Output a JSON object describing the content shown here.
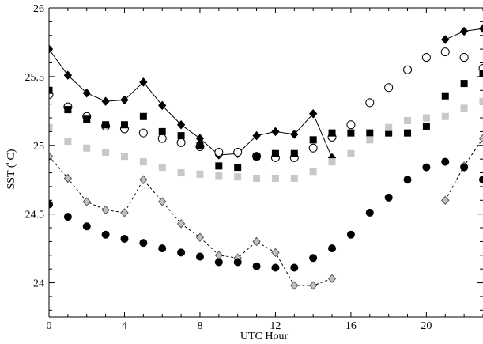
{
  "chart_data": {
    "type": "scatter",
    "xlabel": "UTC Hour",
    "ylabel": "SST (",
    "ylabel_sup": "o",
    "ylabel_unit": "C)",
    "xlim": [
      0,
      23
    ],
    "ylim": [
      23.75,
      26.0
    ],
    "xticks": [
      0,
      4,
      8,
      12,
      16,
      20
    ],
    "xtick_labels": [
      "0",
      "4",
      "8",
      "12",
      "16",
      "20"
    ],
    "yticks": [
      24,
      24.5,
      25,
      25.5,
      26
    ],
    "ytick_labels": [
      "24",
      "24.5",
      "25",
      "25.5",
      "26"
    ],
    "grid": false,
    "series": [
      {
        "marker": "diamond-filled",
        "line": "solid",
        "color": "#000000",
        "segments": [
          [
            [
              0,
              25.7
            ],
            [
              1,
              25.51
            ],
            [
              2,
              25.38
            ],
            [
              3,
              25.32
            ],
            [
              4,
              25.33
            ],
            [
              5,
              25.46
            ],
            [
              6,
              25.29
            ],
            [
              7,
              25.15
            ],
            [
              8,
              25.05
            ],
            [
              9,
              24.93
            ],
            [
              10,
              24.94
            ],
            [
              11,
              25.07
            ],
            [
              12,
              25.1
            ],
            [
              13,
              25.08
            ],
            [
              14,
              25.23
            ],
            [
              15,
              24.91
            ]
          ],
          [
            [
              21,
              25.77
            ],
            [
              22,
              25.83
            ],
            [
              23,
              25.85
            ]
          ]
        ]
      },
      {
        "marker": "diamond-open-gray",
        "line": "dashed",
        "color": "#aaaaaa",
        "segments": [
          [
            [
              0,
              24.92
            ],
            [
              1,
              24.76
            ],
            [
              2,
              24.59
            ],
            [
              3,
              24.53
            ],
            [
              4,
              24.51
            ],
            [
              5,
              24.75
            ],
            [
              6,
              24.59
            ],
            [
              7,
              24.43
            ],
            [
              8,
              24.33
            ],
            [
              9,
              24.2
            ],
            [
              10,
              24.18
            ],
            [
              11,
              24.3
            ],
            [
              12,
              24.22
            ],
            [
              13,
              23.98
            ],
            [
              14,
              23.98
            ],
            [
              15,
              24.03
            ]
          ],
          [
            [
              21,
              24.6
            ],
            [
              22,
              24.85
            ],
            [
              23,
              25.05
            ]
          ]
        ]
      },
      {
        "marker": "circle-open",
        "color": "#000000",
        "points": [
          [
            0,
            25.37
          ],
          [
            1,
            25.28
          ],
          [
            2,
            25.21
          ],
          [
            3,
            25.14
          ],
          [
            4,
            25.12
          ],
          [
            5,
            25.09
          ],
          [
            6,
            25.05
          ],
          [
            7,
            25.02
          ],
          [
            8,
            24.99
          ],
          [
            9,
            24.95
          ],
          [
            10,
            24.95
          ],
          [
            11,
            24.92
          ],
          [
            12,
            24.91
          ],
          [
            13,
            24.91
          ],
          [
            14,
            24.98
          ],
          [
            15,
            25.06
          ],
          [
            16,
            25.15
          ],
          [
            17,
            25.31
          ],
          [
            18,
            25.42
          ],
          [
            19,
            25.55
          ],
          [
            20,
            25.64
          ],
          [
            21,
            25.68
          ],
          [
            22,
            25.64
          ],
          [
            23,
            25.56
          ]
        ]
      },
      {
        "marker": "square-filled",
        "color": "#000000",
        "points": [
          [
            0,
            25.4
          ],
          [
            1,
            25.26
          ],
          [
            2,
            25.19
          ],
          [
            3,
            25.15
          ],
          [
            4,
            25.15
          ],
          [
            5,
            25.21
          ],
          [
            6,
            25.1
          ],
          [
            7,
            25.07
          ],
          [
            8,
            25.0
          ],
          [
            9,
            24.85
          ],
          [
            10,
            24.84
          ],
          [
            11,
            24.92
          ],
          [
            12,
            24.94
          ],
          [
            13,
            24.94
          ],
          [
            14,
            25.04
          ],
          [
            15,
            25.09
          ],
          [
            16,
            25.09
          ],
          [
            17,
            25.09
          ],
          [
            18,
            25.09
          ],
          [
            19,
            25.09
          ],
          [
            20,
            25.14
          ],
          [
            21,
            25.36
          ],
          [
            22,
            25.45
          ],
          [
            23,
            25.52
          ]
        ]
      },
      {
        "marker": "square-filled-gray",
        "color": "#c8c8c8",
        "points": [
          [
            0,
            25.13
          ],
          [
            1,
            25.03
          ],
          [
            2,
            24.98
          ],
          [
            3,
            24.95
          ],
          [
            4,
            24.92
          ],
          [
            5,
            24.88
          ],
          [
            6,
            24.84
          ],
          [
            7,
            24.8
          ],
          [
            8,
            24.79
          ],
          [
            9,
            24.78
          ],
          [
            10,
            24.77
          ],
          [
            11,
            24.76
          ],
          [
            12,
            24.76
          ],
          [
            13,
            24.76
          ],
          [
            14,
            24.81
          ],
          [
            15,
            24.88
          ],
          [
            16,
            24.94
          ],
          [
            17,
            25.04
          ],
          [
            18,
            25.13
          ],
          [
            19,
            25.18
          ],
          [
            20,
            25.2
          ],
          [
            21,
            25.21
          ],
          [
            22,
            25.27
          ],
          [
            23,
            25.32
          ]
        ]
      },
      {
        "marker": "circle-filled",
        "color": "#000000",
        "points": [
          [
            0,
            24.57
          ],
          [
            1,
            24.48
          ],
          [
            2,
            24.41
          ],
          [
            3,
            24.35
          ],
          [
            4,
            24.32
          ],
          [
            5,
            24.29
          ],
          [
            6,
            24.25
          ],
          [
            7,
            24.22
          ],
          [
            8,
            24.19
          ],
          [
            9,
            24.15
          ],
          [
            10,
            24.15
          ],
          [
            11,
            24.12
          ],
          [
            12,
            24.11
          ],
          [
            13,
            24.11
          ],
          [
            14,
            24.18
          ],
          [
            15,
            24.25
          ],
          [
            16,
            24.35
          ],
          [
            17,
            24.51
          ],
          [
            18,
            24.62
          ],
          [
            19,
            24.75
          ],
          [
            20,
            24.84
          ],
          [
            21,
            24.88
          ],
          [
            22,
            24.84
          ],
          [
            23,
            24.75
          ]
        ]
      }
    ]
  }
}
